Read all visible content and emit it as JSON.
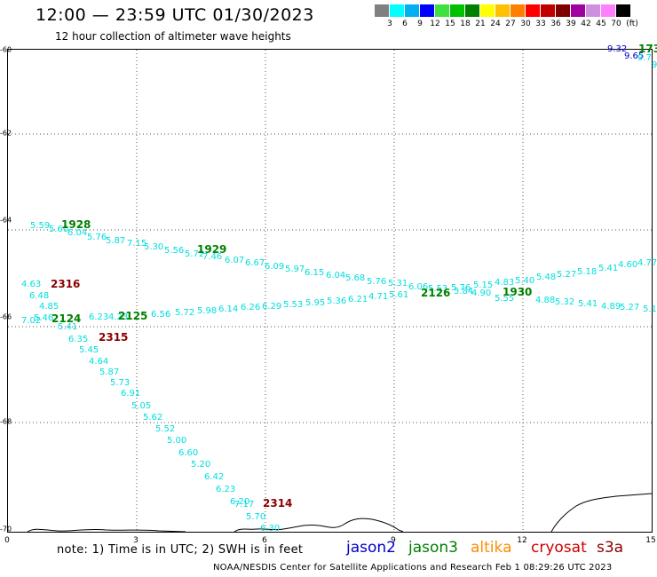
{
  "header": {
    "title": "12:00 — 23:59 UTC 01/30/2023",
    "subtitle": "12 hour collection of altimeter wave heights"
  },
  "colorbar": {
    "colors": [
      "#808080",
      "#00ffff",
      "#00b0f0",
      "#0000ff",
      "#40e040",
      "#00c000",
      "#008000",
      "#ffff00",
      "#ffc000",
      "#ff8000",
      "#ff0000",
      "#c00000",
      "#800000",
      "#a000a0",
      "#d090e0",
      "#ff80ff",
      "#000000"
    ],
    "labels": [
      "3",
      "6",
      "9",
      "12",
      "15",
      "18",
      "21",
      "24",
      "27",
      "30",
      "33",
      "36",
      "39",
      "42",
      "45",
      "70",
      "(ft)"
    ]
  },
  "axes": {
    "y_labels": [
      "-60",
      "-62",
      "-64",
      "-66",
      "-68",
      "-70"
    ],
    "x_labels": [
      "0",
      "3",
      "6",
      "9",
      "12",
      "15"
    ]
  },
  "footer": {
    "note": "note:  1) Time is in UTC;  2) SWH is in feet",
    "legend": [
      {
        "name": "jason2",
        "color": "#0000cc"
      },
      {
        "name": "jason3",
        "color": "#008000"
      },
      {
        "name": "altika",
        "color": "#ff8c00"
      },
      {
        "name": "cryosat",
        "color": "#cc0000"
      },
      {
        "name": "s3a",
        "color": "#8b0000"
      }
    ],
    "credit": "NOAA/NESDIS Center for Satellite Applications and Research     Feb  1 08:29:26 UTC 2023"
  },
  "colors": {
    "swh_value": "#00dede",
    "jason3": "#008000",
    "s3a": "#8b0000",
    "jason2": "#0000cc"
  },
  "track_times": [
    {
      "text": "1928",
      "satellite": "jason3"
    },
    {
      "text": "1929",
      "satellite": "jason3"
    },
    {
      "text": "2316",
      "satellite": "s3a"
    },
    {
      "text": "2124",
      "satellite": "jason3"
    },
    {
      "text": "2125",
      "satellite": "jason3"
    },
    {
      "text": "2315",
      "satellite": "s3a"
    },
    {
      "text": "2126",
      "satellite": "jason3"
    },
    {
      "text": "1930",
      "satellite": "jason3"
    },
    {
      "text": "2314",
      "satellite": "s3a"
    },
    {
      "text": "173",
      "satellite": "jason3"
    }
  ],
  "swh_values": [
    {
      "text": "9.32",
      "color": "#0000cc"
    },
    {
      "text": "9.65",
      "color": "#0000cc"
    },
    {
      "text": "9.7",
      "color": "#00dede"
    },
    {
      "text": "9",
      "color": "#00dede"
    },
    {
      "text": "5.59"
    },
    {
      "text": "5.60"
    },
    {
      "text": "6.04"
    },
    {
      "text": "5.76"
    },
    {
      "text": "5.87"
    },
    {
      "text": "7.15"
    },
    {
      "text": "5.30"
    },
    {
      "text": "5.56"
    },
    {
      "text": "5.72"
    },
    {
      "text": "7.46"
    },
    {
      "text": "6.07"
    },
    {
      "text": "6.67"
    },
    {
      "text": "6.09"
    },
    {
      "text": "5.97"
    },
    {
      "text": "6.15"
    },
    {
      "text": "6.04"
    },
    {
      "text": "5.68"
    },
    {
      "text": "5.76"
    },
    {
      "text": "5.31"
    },
    {
      "text": "6.06"
    },
    {
      "text": "5.53"
    },
    {
      "text": "5.76"
    },
    {
      "text": "5.15"
    },
    {
      "text": "4.83"
    },
    {
      "text": "5.40"
    },
    {
      "text": "5.48"
    },
    {
      "text": "5.27"
    },
    {
      "text": "5.18"
    },
    {
      "text": "5.41"
    },
    {
      "text": "4.60"
    },
    {
      "text": "4.77"
    },
    {
      "text": "4.63"
    },
    {
      "text": "6.48"
    },
    {
      "text": "4.85"
    },
    {
      "text": "7.02"
    },
    {
      "text": "5.46"
    },
    {
      "text": "6.23"
    },
    {
      "text": "4.23"
    },
    {
      "text": "6.56"
    },
    {
      "text": "5.72"
    },
    {
      "text": "5.98"
    },
    {
      "text": "6.14"
    },
    {
      "text": "6.26"
    },
    {
      "text": "6.29"
    },
    {
      "text": "5.53"
    },
    {
      "text": "5.95"
    },
    {
      "text": "5.36"
    },
    {
      "text": "6.21"
    },
    {
      "text": "4.71"
    },
    {
      "text": "5.61"
    },
    {
      "text": "5.84"
    },
    {
      "text": "4.90"
    },
    {
      "text": "5.55"
    },
    {
      "text": "4.88"
    },
    {
      "text": "5.32"
    },
    {
      "text": "5.41"
    },
    {
      "text": "4.89"
    },
    {
      "text": "5.27"
    },
    {
      "text": "5.1"
    },
    {
      "text": "5.41"
    },
    {
      "text": "6.35"
    },
    {
      "text": "5.45"
    },
    {
      "text": "4.64"
    },
    {
      "text": "5.87"
    },
    {
      "text": "5.73"
    },
    {
      "text": "6.91"
    },
    {
      "text": "5.05"
    },
    {
      "text": "5.62"
    },
    {
      "text": "5.52"
    },
    {
      "text": "5.00"
    },
    {
      "text": "6.60"
    },
    {
      "text": "5.20"
    },
    {
      "text": "6.42"
    },
    {
      "text": "6.23"
    },
    {
      "text": "6.20"
    },
    {
      "text": "7.17"
    },
    {
      "text": "5.70"
    },
    {
      "text": "6.30"
    }
  ]
}
